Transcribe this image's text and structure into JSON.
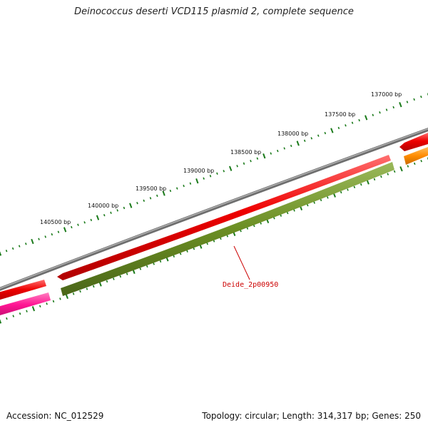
{
  "title": "Deinococcus deserti VCD115 plasmid 2, complete sequence",
  "scale_labels": [
    "137000 bp",
    "137500 bp",
    "138000 bp",
    "138500 bp",
    "139000 bp",
    "139500 bp",
    "140000 bp",
    "140500 bp"
  ],
  "feature_label": "Deide_2p00950",
  "footer": {
    "accession": "Accession: NC_012529",
    "summary": "Topology: circular; Length: 314,317 bp; Genes: 250"
  },
  "colors": {
    "backbone": "#888888",
    "forward_gene": "#ee0000",
    "reverse_gene": "#6b8e23",
    "orange_gene": "#ff8c00",
    "pink_gene": "#ff1493",
    "tick": "#1a7a1a",
    "label": "#cc0000"
  }
}
